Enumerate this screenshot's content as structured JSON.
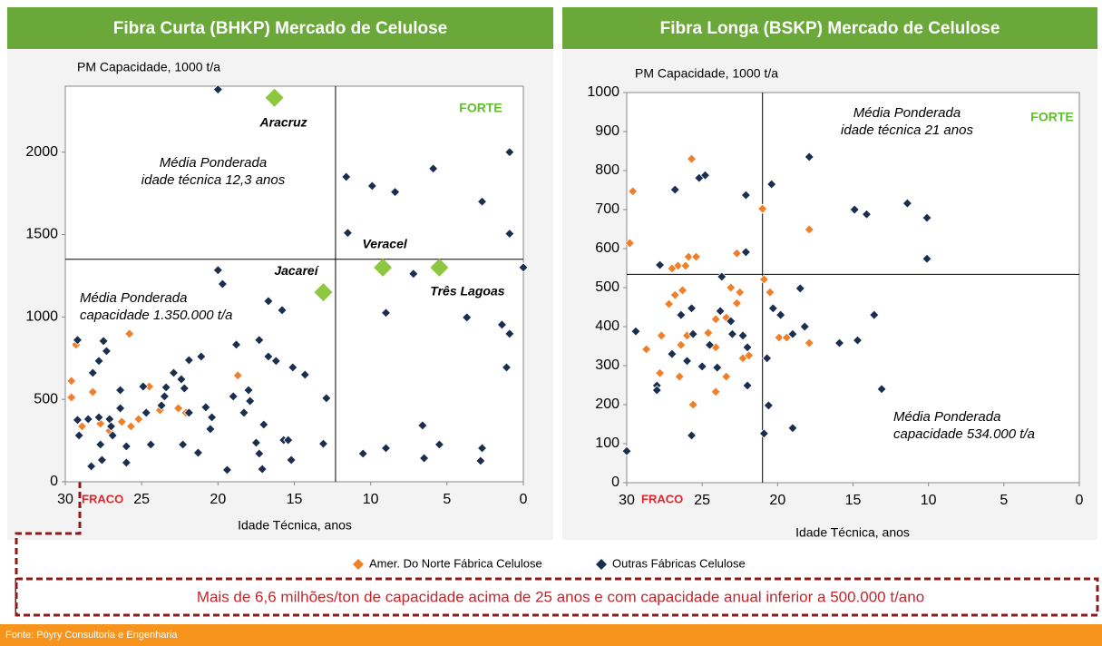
{
  "chart_data": [
    {
      "type": "scatter",
      "title": "Fibra Curta (BHKP) Mercado de Celulose",
      "ylabel": "PM Capacidade, 1000 t/a",
      "xlabel": "Idade Técnica, anos",
      "xlim": [
        30,
        0
      ],
      "xticks": [
        30,
        25,
        20,
        15,
        10,
        5,
        0
      ],
      "ylim": [
        0,
        2400
      ],
      "yticks": [
        0,
        500,
        1000,
        1500,
        2000
      ],
      "mean_x": 12.3,
      "mean_y": 1350,
      "mean_x_label": [
        "Média Ponderada",
        "idade técnica 12,3 anos"
      ],
      "mean_y_label": [
        "Média Ponderada",
        "capacidade 1.350.000 t/a"
      ],
      "strong_label": "FORTE",
      "weak_label": "FRACO",
      "series": [
        {
          "x": [
            29.3,
            29.6,
            29.6,
            28.2,
            25.8,
            24.5,
            18.7,
            22.6,
            22.1,
            23.8,
            25.2,
            27.7,
            28.9,
            27.1,
            26.3,
            25.7
          ],
          "values": [
            832,
            612,
            512,
            545,
            898,
            578,
            645,
            446,
            419,
            435,
            380,
            353,
            336,
            309,
            364,
            336
          ]
        },
        {
          "x": [
            20.0,
            11.6,
            9.9,
            8.4,
            5.9,
            2.7,
            0.9,
            11.5,
            0.9,
            0,
            7.2,
            9.0,
            3.7,
            1.4,
            0.9,
            1.1,
            20.0,
            19.7,
            16.7,
            15.8,
            17.3,
            16.7,
            16.2,
            15.1,
            14.3,
            12.9,
            18.8,
            21.1,
            21.9,
            22.4,
            22.9,
            23.4,
            22.2,
            24.9,
            28.2,
            27.5,
            29.2,
            27.3,
            27.8,
            26.4,
            23.5,
            23.7,
            18.0,
            17.9,
            19.0,
            18.3,
            20.8,
            20.4,
            20.5,
            17.0,
            24.7,
            21.9,
            24.4,
            22.3,
            21.3,
            19.4,
            17.5,
            17.3,
            17.1,
            15.7,
            15.4,
            15.2,
            13.1,
            10.5,
            9.0,
            6.6,
            6.5,
            5.5,
            2.7,
            2.8,
            29.2,
            28.5,
            27.8,
            27.1,
            26.4,
            29.1,
            27.7,
            26.9,
            26.0,
            28.3,
            27.6,
            26.0,
            27.0
          ],
          "values": [
            2380,
            1850,
            1795,
            1758,
            1900,
            1700,
            2000,
            1510,
            1505,
            1300,
            1262,
            1025,
            997,
            953,
            898,
            694,
            1284,
            1200,
            1096,
            1041,
            860,
            760,
            733,
            694,
            650,
            507,
            832,
            760,
            738,
            622,
            661,
            573,
            567,
            578,
            661,
            854,
            860,
            793,
            733,
            556,
            518,
            463,
            556,
            490,
            518,
            419,
            452,
            391,
            320,
            347,
            419,
            419,
            226,
            226,
            176,
            72,
            237,
            171,
            77,
            253,
            253,
            132,
            231,
            171,
            204,
            342,
            143,
            226,
            204,
            127,
            375,
            380,
            391,
            380,
            446,
            281,
            226,
            281,
            215,
            94,
            132,
            116,
            336
          ]
        }
      ],
      "highlight_color": "#8dc63f",
      "highlights": [
        {
          "label": "Aracruz",
          "x": 16.3,
          "y": 2330
        },
        {
          "label": "Veracel",
          "x": 9.2,
          "y": 1300
        },
        {
          "label": "Jacareí",
          "x": 13.1,
          "y": 1150
        },
        {
          "label": "Três Lagoas",
          "x": 5.5,
          "y": 1300
        }
      ]
    },
    {
      "type": "scatter",
      "title": "Fibra Longa (BSKP) Mercado de Celulose",
      "ylabel": "PM Capacidade, 1000 t/a",
      "xlabel": "Idade Técnica, anos",
      "xlim": [
        30,
        0
      ],
      "xticks": [
        30,
        25,
        20,
        15,
        10,
        5,
        0
      ],
      "ylim": [
        0,
        1000
      ],
      "yticks": [
        0,
        100,
        200,
        300,
        400,
        500,
        600,
        700,
        800,
        900,
        1000
      ],
      "mean_x": 21,
      "mean_y": 534,
      "mean_x_label": [
        "Média Ponderada",
        "idade técnica 21 anos"
      ],
      "mean_y_label": [
        "Média Ponderada",
        "capacidade 534.000 t/a"
      ],
      "strong_label": "FORTE",
      "weak_label": "FRACO",
      "series": [
        {
          "x": [
            29.6,
            29.8,
            25.7,
            26.6,
            27.0,
            26.1,
            25.9,
            25.4,
            26.3,
            21.0,
            20.9,
            20.5,
            17.9,
            22.7,
            23.1,
            22.7,
            22.5,
            27.7,
            28.7,
            27.8,
            26.5,
            25.6,
            26.8,
            27.2,
            26.4,
            24.1,
            24.1,
            23.4,
            24.1,
            24.6,
            26.0,
            23.4,
            22.3,
            21.9,
            19.9,
            19.4,
            17.9
          ],
          "values": [
            747,
            614,
            830,
            556,
            549,
            556,
            579,
            579,
            493,
            702,
            521,
            488,
            649,
            588,
            500,
            460,
            488,
            377,
            342,
            281,
            272,
            200,
            481,
            458,
            353,
            419,
            347,
            272,
            233,
            384,
            377,
            423,
            319,
            326,
            372,
            372,
            358
          ]
        },
        {
          "x": [
            30,
            29.4,
            27.8,
            26.8,
            25.2,
            24.8,
            23.8,
            23.7,
            22.1,
            22.1,
            20.4,
            17.9,
            14.9,
            14.1,
            11.4,
            10.1,
            10.1,
            18.5,
            18.2,
            13.6,
            14.7,
            15.9,
            13.1,
            20.3,
            19.8,
            19.0,
            20.7,
            20.6,
            19.0,
            20.9,
            28.0,
            28.0,
            27.0,
            26.4,
            25.7,
            25.6,
            26.0,
            25.0,
            24.0,
            24.5,
            23.1,
            22.3,
            22.0,
            22.0,
            23.0,
            25.7
          ],
          "values": [
            81,
            388,
            558,
            751,
            781,
            788,
            440,
            528,
            737,
            591,
            765,
            835,
            700,
            688,
            716,
            679,
            574,
            498,
            400,
            430,
            365,
            358,
            240,
            447,
            430,
            381,
            319,
            198,
            140,
            126,
            249,
            237,
            330,
            430,
            447,
            381,
            312,
            298,
            295,
            353,
            414,
            377,
            347,
            249,
            381,
            121
          ]
        }
      ]
    }
  ],
  "legend": [
    {
      "name": "Amer. Do Norte Fábrica Celulose",
      "color": "#f07f2a"
    },
    {
      "name": "Outras Fábricas Celulose",
      "color": "#1a2e4f"
    }
  ],
  "banner": "Mais de 6,6 milhões/ton de capacidade acima de 25 anos e com capacidade anual inferior a 500.000 t/ano",
  "source": "Fonte: Pöyry Consultoria e Engenharia"
}
